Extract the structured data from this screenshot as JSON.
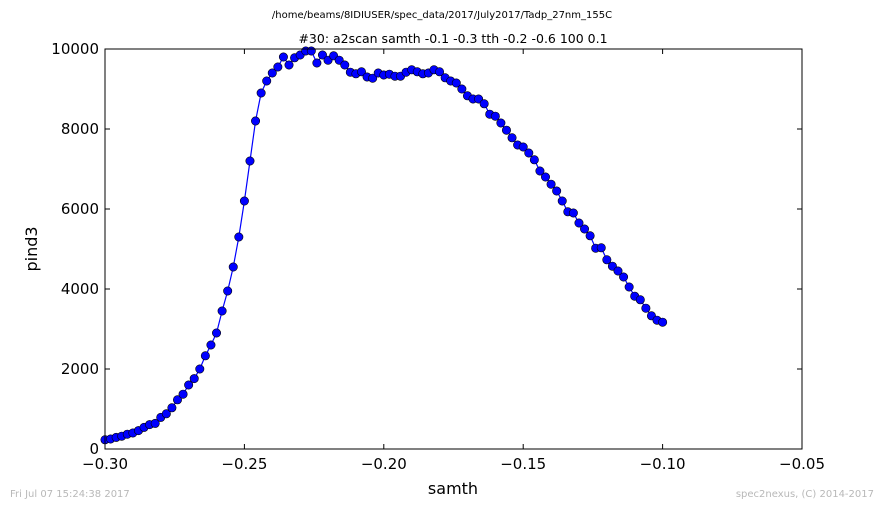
{
  "header": {
    "file_path": "/home/beams/8IDIUSER/spec_data/2017/July2017/Tadp_27nm_155C"
  },
  "footer": {
    "date": "Fri Jul 07 15:24:38 2017",
    "credit": "spec2nexus, (C) 2014-2017"
  },
  "chart_data": {
    "type": "line",
    "title": "#30: a2scan  samth -0.1 -0.3  tth -0.2 -0.6  100 0.1",
    "xlabel": "samth",
    "ylabel": "pind3",
    "xlim": [
      -0.3,
      -0.05
    ],
    "ylim": [
      0,
      10000
    ],
    "xticks": [
      -0.3,
      -0.25,
      -0.2,
      -0.15,
      -0.1,
      -0.05
    ],
    "xtick_labels": [
      "−0.30",
      "−0.25",
      "−0.20",
      "−0.15",
      "−0.10",
      "−0.05"
    ],
    "yticks": [
      0,
      2000,
      4000,
      6000,
      8000,
      10000
    ],
    "ytick_labels": [
      "0",
      "2000",
      "4000",
      "6000",
      "8000",
      "10000"
    ],
    "line_color": "#0000ff",
    "marker": "circle",
    "grid": false,
    "series": [
      {
        "x": [
          -0.3,
          -0.298,
          -0.296,
          -0.294,
          -0.292,
          -0.29,
          -0.288,
          -0.286,
          -0.284,
          -0.282,
          -0.28,
          -0.278,
          -0.276,
          -0.274,
          -0.272,
          -0.27,
          -0.268,
          -0.266,
          -0.264,
          -0.262,
          -0.26,
          -0.258,
          -0.256,
          -0.254,
          -0.252,
          -0.25,
          -0.248,
          -0.246,
          -0.244,
          -0.242,
          -0.24,
          -0.238,
          -0.236,
          -0.234,
          -0.232,
          -0.23,
          -0.228,
          -0.226,
          -0.224,
          -0.222,
          -0.22,
          -0.218,
          -0.216,
          -0.214,
          -0.212,
          -0.21,
          -0.208,
          -0.206,
          -0.204,
          -0.202,
          -0.2,
          -0.198,
          -0.196,
          -0.194,
          -0.192,
          -0.19,
          -0.188,
          -0.186,
          -0.184,
          -0.182,
          -0.18,
          -0.178,
          -0.176,
          -0.174,
          -0.172,
          -0.17,
          -0.168,
          -0.166,
          -0.164,
          -0.162,
          -0.16,
          -0.158,
          -0.156,
          -0.154,
          -0.152,
          -0.15,
          -0.148,
          -0.146,
          -0.144,
          -0.142,
          -0.14,
          -0.138,
          -0.136,
          -0.134,
          -0.132,
          -0.13,
          -0.128,
          -0.126,
          -0.124,
          -0.122,
          -0.12,
          -0.118,
          -0.116,
          -0.114,
          -0.112,
          -0.11,
          -0.108,
          -0.106,
          -0.104,
          -0.102,
          -0.1
        ],
        "y": [
          230,
          250,
          290,
          320,
          370,
          400,
          460,
          540,
          610,
          640,
          790,
          880,
          1030,
          1230,
          1370,
          1600,
          1760,
          2000,
          2330,
          2600,
          2900,
          3450,
          3950,
          4550,
          5300,
          6200,
          7200,
          8200,
          8900,
          9200,
          9400,
          9550,
          9800,
          9600,
          9780,
          9850,
          9950,
          9950,
          9650,
          9850,
          9720,
          9830,
          9720,
          9600,
          9420,
          9380,
          9430,
          9300,
          9270,
          9400,
          9350,
          9370,
          9320,
          9320,
          9420,
          9480,
          9430,
          9380,
          9400,
          9480,
          9430,
          9280,
          9200,
          9150,
          9000,
          8830,
          8750,
          8750,
          8630,
          8370,
          8320,
          8150,
          7970,
          7780,
          7600,
          7550,
          7400,
          7230,
          6950,
          6800,
          6620,
          6450,
          6200,
          5930,
          5900,
          5650,
          5500,
          5330,
          5020,
          5030,
          4730,
          4570,
          4450,
          4300,
          4050,
          3820,
          3730,
          3520,
          3330,
          3220,
          3170
        ]
      }
    ]
  }
}
